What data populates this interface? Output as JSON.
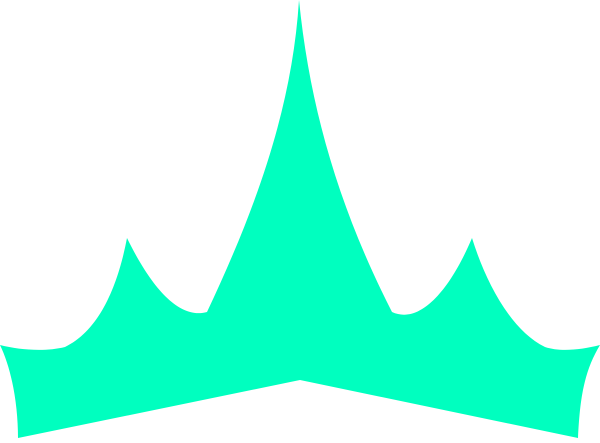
{
  "colors": {
    "background": "#ffffff",
    "shape_fill": "#00ffbf"
  },
  "icons": {
    "main_shape": "crown-spikes-icon"
  }
}
